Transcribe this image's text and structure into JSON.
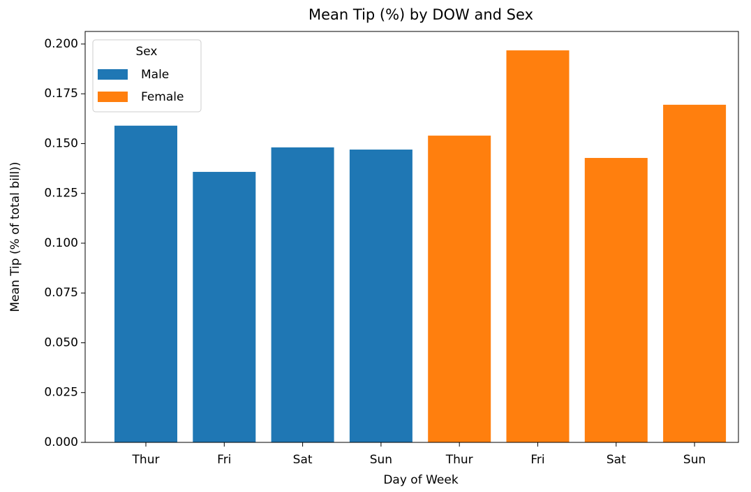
{
  "chart_data": {
    "type": "bar",
    "title": "Mean Tip (%) by DOW and Sex",
    "xlabel": "Day of Week",
    "ylabel": "Mean Tip (% of total bill))",
    "categories": [
      "Thur",
      "Fri",
      "Sat",
      "Sun",
      "Thur",
      "Fri",
      "Sat",
      "Sun"
    ],
    "series": [
      {
        "name": "Male",
        "color": "#1f77b4",
        "values": [
          0.159,
          0.1358,
          0.1481,
          0.147,
          null,
          null,
          null,
          null
        ]
      },
      {
        "name": "Female",
        "color": "#ff7f0e",
        "values": [
          null,
          null,
          null,
          null,
          0.154,
          0.1968,
          0.1428,
          0.1695
        ]
      }
    ],
    "legend_title": "Sex",
    "legend": "upper left",
    "ylim": [
      0,
      0.2063
    ],
    "yticks": [
      {
        "value": 0,
        "label": "0.000"
      },
      {
        "value": 0.025,
        "label": "0.025"
      },
      {
        "value": 0.05,
        "label": "0.050"
      },
      {
        "value": 0.075,
        "label": "0.075"
      },
      {
        "value": 0.1,
        "label": "0.100"
      },
      {
        "value": 0.125,
        "label": "0.125"
      },
      {
        "value": 0.15,
        "label": "0.150"
      },
      {
        "value": 0.175,
        "label": "0.175"
      },
      {
        "value": 0.2,
        "label": "0.200"
      }
    ],
    "grid": false
  }
}
